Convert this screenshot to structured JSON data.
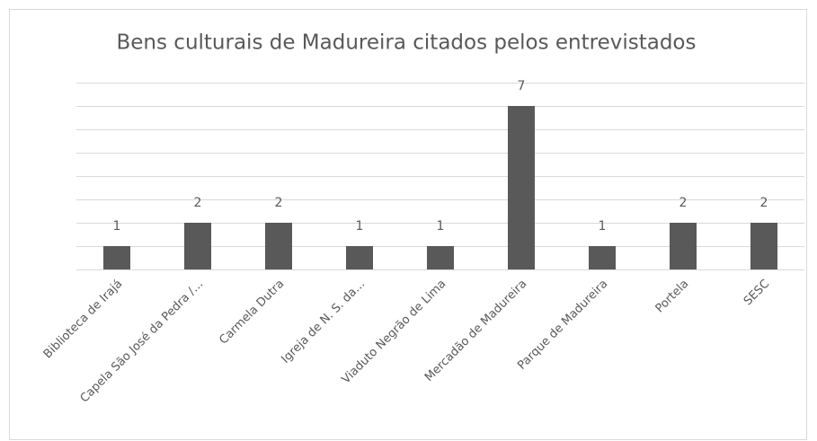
{
  "chart_data": {
    "type": "bar",
    "title": "Bens culturais de Madureira citados pelos entrevistados",
    "categories": [
      "Biblioteca de Irajá",
      "Capela São José da Pedra /…",
      "Carmela Dutra",
      "Igreja de N. S. da…",
      "Viaduto Negrão de Lima",
      "Mercadão de Madureira",
      "Parque de Madureira",
      "Portela",
      "SESC"
    ],
    "values": [
      1,
      2,
      2,
      1,
      1,
      7,
      1,
      2,
      2
    ],
    "color": "#595959",
    "ylim": [
      0,
      8
    ],
    "yticks": [
      0,
      1,
      2,
      3,
      4,
      5,
      6,
      7,
      8
    ],
    "grid": true
  }
}
